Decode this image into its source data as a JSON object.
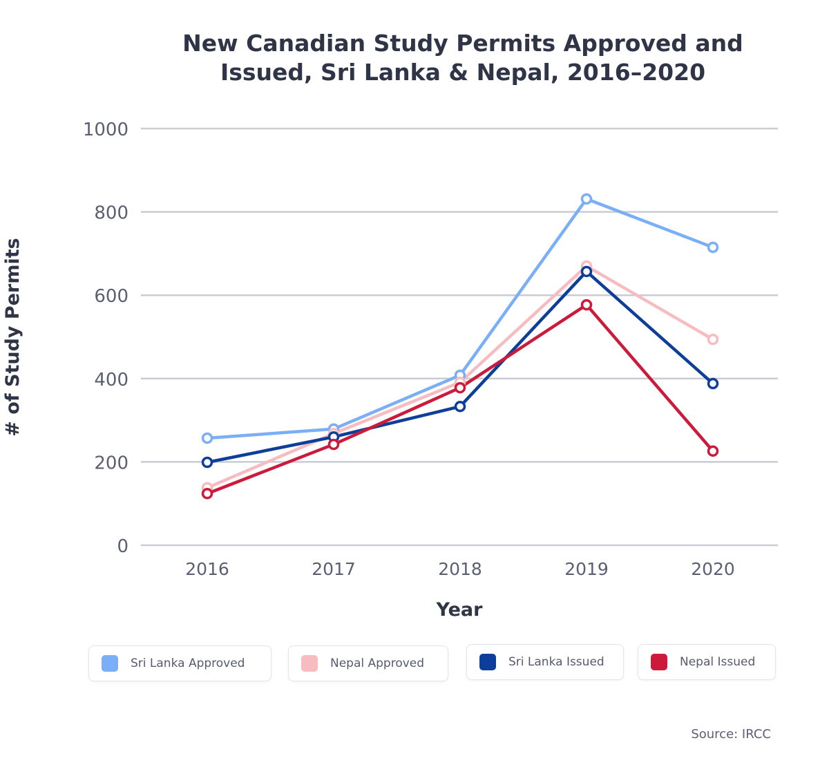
{
  "chart_data": {
    "type": "line",
    "title": "New Canadian Study Permits Approved and Issued, Sri Lanka & Nepal, 2016–2020",
    "title_lines": [
      "New Canadian Study Permits Approved and",
      "Issued, Sri Lanka & Nepal, 2016–2020"
    ],
    "xlabel": "Year",
    "ylabel": "# of Study Permits",
    "categories": [
      "2016",
      "2017",
      "2018",
      "2019",
      "2020"
    ],
    "ylim": [
      0,
      1000
    ],
    "yticks": [
      0,
      200,
      400,
      600,
      800,
      1000
    ],
    "grid": true,
    "legend_placement": "bottom",
    "series": [
      {
        "name": "Sri Lanka Approved",
        "color": "#7aaff7",
        "values": [
          257,
          279,
          408,
          831,
          715
        ]
      },
      {
        "name": "Nepal Approved",
        "color": "#f7bcc0",
        "values": [
          138,
          268,
          391,
          670,
          494
        ]
      },
      {
        "name": "Sri Lanka Issued",
        "color": "#0d3f9a",
        "values": [
          199,
          260,
          333,
          657,
          388
        ]
      },
      {
        "name": "Nepal Issued",
        "color": "#cc1a3a",
        "values": [
          124,
          242,
          378,
          577,
          226
        ]
      }
    ],
    "source": "Source: IRCC"
  }
}
